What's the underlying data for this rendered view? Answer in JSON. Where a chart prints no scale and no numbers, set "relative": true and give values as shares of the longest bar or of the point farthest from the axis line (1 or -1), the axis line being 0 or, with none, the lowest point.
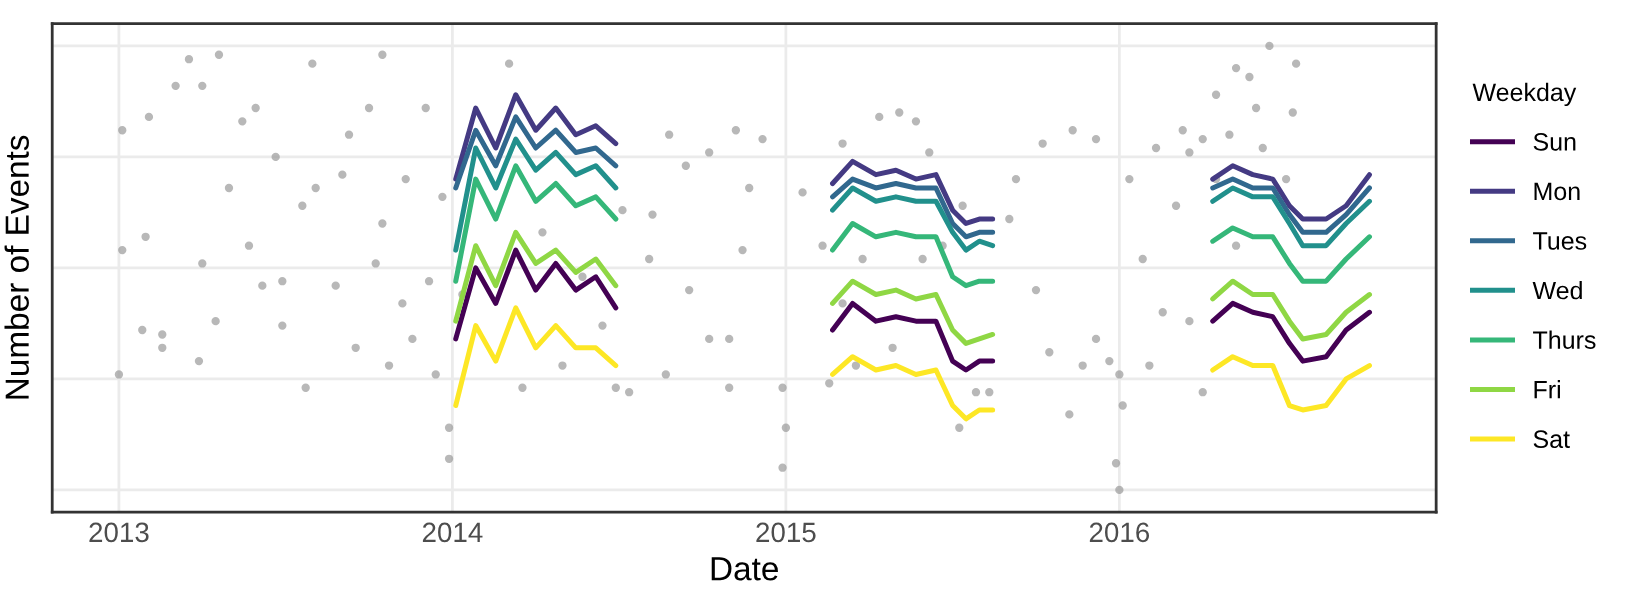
{
  "chart_data": {
    "type": "line",
    "xlabel": "Date",
    "ylabel": "Number of Events",
    "legend_title": "Weekday",
    "legend": "right",
    "grid": true,
    "tick_labels": "x",
    "relative": true,
    "line_style": "solid",
    "marker": "none",
    "xlim": [
      2012.8,
      2016.95
    ],
    "xticks": [
      2013,
      2014,
      2015,
      2016
    ],
    "x": [
      2014.01,
      2014.07,
      2014.13,
      2014.19,
      2014.25,
      2014.31,
      2014.37,
      2014.43,
      2014.49,
      2014.8,
      2015.14,
      2015.2,
      2015.27,
      2015.33,
      2015.39,
      2015.45,
      2015.5,
      2015.54,
      2015.58,
      2015.62,
      2015.9,
      2016.28,
      2016.34,
      2016.4,
      2016.46,
      2016.51,
      2016.55,
      2016.62,
      2016.68,
      2016.75
    ],
    "series": [
      {
        "type": "scatter",
        "color": "#9a9a9a",
        "marker": "circle",
        "x": [
          2013.0,
          2013.01,
          2013.01,
          2013.21,
          2013.3,
          2013.17,
          2013.25,
          2013.09,
          2013.08,
          2013.07,
          2013.13,
          2013.24,
          2013.29,
          2013.37,
          2013.41,
          2013.33,
          2013.47,
          2013.39,
          2013.49,
          2013.58,
          2013.56,
          2013.59,
          2013.65,
          2013.69,
          2013.75,
          2013.79,
          2013.77,
          2013.71,
          2013.81,
          2013.86,
          2013.92,
          2013.93,
          2013.88,
          2013.97,
          2013.99,
          2013.99,
          2013.95,
          2014.17,
          2014.51,
          2014.59,
          2014.6,
          2014.65,
          2014.7,
          2014.77,
          2014.71,
          2014.77,
          2014.83,
          2014.64,
          2014.53,
          2014.49,
          2014.89,
          2014.85,
          2014.93,
          2014.87,
          2014.83,
          2014.99,
          2015.0,
          2014.99,
          2015.05,
          2015.17,
          2015.28,
          2015.34,
          2015.39,
          2015.43,
          2015.13,
          2015.21,
          2015.23,
          2015.41,
          2015.52,
          2015.57,
          2015.61,
          2015.67,
          2015.69,
          2015.77,
          2015.86,
          2015.93,
          2015.75,
          2015.79,
          2015.85,
          2015.89,
          2015.97,
          2016.0,
          2015.99,
          2016.0,
          2016.01,
          2016.03,
          2016.11,
          2016.17,
          2016.19,
          2016.21,
          2016.07,
          2016.09,
          2016.25,
          2016.29,
          2016.35,
          2016.39,
          2016.45,
          2016.53,
          2016.52,
          2016.41,
          2016.33,
          2016.43,
          2016.5,
          2016.25,
          2016.29,
          2016.35,
          2016.21,
          2016.13,
          2015.93,
          2013.13,
          2013.25,
          2013.43,
          2013.55,
          2013.67,
          2013.79,
          2013.49,
          2013.85,
          2014.03,
          2014.27,
          2014.39,
          2014.45,
          2014.33,
          2014.21,
          2015.17,
          2015.32,
          2015.47,
          2015.53,
          2015.11
        ],
        "values": [
          0.26,
          0.81,
          0.54,
          0.97,
          0.98,
          0.91,
          0.91,
          0.84,
          0.57,
          0.36,
          0.32,
          0.29,
          0.38,
          0.83,
          0.86,
          0.68,
          0.75,
          0.55,
          0.47,
          0.96,
          0.23,
          0.68,
          0.46,
          0.8,
          0.86,
          0.98,
          0.51,
          0.32,
          0.28,
          0.7,
          0.86,
          0.47,
          0.34,
          0.66,
          0.14,
          0.07,
          0.26,
          0.96,
          0.63,
          0.52,
          0.62,
          0.8,
          0.73,
          0.76,
          0.45,
          0.34,
          0.23,
          0.26,
          0.22,
          0.23,
          0.68,
          0.81,
          0.79,
          0.54,
          0.34,
          0.23,
          0.14,
          0.05,
          0.67,
          0.78,
          0.84,
          0.85,
          0.83,
          0.76,
          0.24,
          0.28,
          0.52,
          0.52,
          0.14,
          0.22,
          0.22,
          0.61,
          0.7,
          0.78,
          0.81,
          0.79,
          0.45,
          0.31,
          0.17,
          0.28,
          0.29,
          0.26,
          0.06,
          0.0,
          0.19,
          0.7,
          0.77,
          0.64,
          0.81,
          0.76,
          0.52,
          0.28,
          0.22,
          0.89,
          0.95,
          0.93,
          1.0,
          0.96,
          0.85,
          0.86,
          0.8,
          0.77,
          0.7,
          0.79,
          0.7,
          0.55,
          0.38,
          0.4,
          0.34,
          0.35,
          0.51,
          0.46,
          0.64,
          0.71,
          0.6,
          0.37,
          0.42,
          0.44,
          0.58,
          0.48,
          0.37,
          0.28,
          0.23,
          0.42,
          0.32,
          0.55,
          0.64,
          0.55
        ]
      },
      {
        "name": "Sun",
        "color": "#440154",
        "values": [
          0.34,
          0.5,
          0.42,
          0.54,
          0.45,
          0.51,
          0.45,
          0.48,
          0.41,
          null,
          0.36,
          0.42,
          0.38,
          0.39,
          0.38,
          0.38,
          0.29,
          0.27,
          0.29,
          0.29,
          null,
          0.38,
          0.42,
          0.4,
          0.39,
          0.33,
          0.29,
          0.3,
          0.36,
          0.4
        ]
      },
      {
        "name": "Mon",
        "color": "#443a83",
        "values": [
          0.7,
          0.86,
          0.77,
          0.89,
          0.81,
          0.86,
          0.8,
          0.82,
          0.78,
          null,
          0.69,
          0.74,
          0.71,
          0.72,
          0.7,
          0.71,
          0.63,
          0.6,
          0.61,
          0.61,
          null,
          0.7,
          0.73,
          0.71,
          0.7,
          0.64,
          0.61,
          0.61,
          0.64,
          0.71
        ]
      },
      {
        "name": "Tues",
        "color": "#31688e",
        "values": [
          0.68,
          0.81,
          0.73,
          0.84,
          0.77,
          0.81,
          0.76,
          0.77,
          0.73,
          null,
          0.66,
          0.7,
          0.68,
          0.69,
          0.68,
          0.68,
          0.6,
          0.57,
          0.58,
          0.58,
          null,
          0.68,
          0.7,
          0.68,
          0.68,
          0.62,
          0.58,
          0.58,
          0.62,
          0.68
        ]
      },
      {
        "name": "Wed",
        "color": "#21908c",
        "values": [
          0.54,
          0.77,
          0.68,
          0.79,
          0.72,
          0.76,
          0.71,
          0.73,
          0.68,
          null,
          0.63,
          0.68,
          0.65,
          0.66,
          0.65,
          0.65,
          0.58,
          0.54,
          0.56,
          0.55,
          null,
          0.65,
          0.68,
          0.66,
          0.66,
          0.6,
          0.55,
          0.55,
          0.6,
          0.65
        ]
      },
      {
        "name": "Thurs",
        "color": "#35b779",
        "values": [
          0.47,
          0.7,
          0.61,
          0.73,
          0.65,
          0.69,
          0.64,
          0.66,
          0.61,
          null,
          0.54,
          0.6,
          0.57,
          0.58,
          0.57,
          0.57,
          0.48,
          0.46,
          0.47,
          0.47,
          null,
          0.56,
          0.59,
          0.57,
          0.57,
          0.51,
          0.47,
          0.47,
          0.52,
          0.57
        ]
      },
      {
        "name": "Fri",
        "color": "#8fd744",
        "values": [
          0.38,
          0.55,
          0.46,
          0.58,
          0.51,
          0.54,
          0.49,
          0.52,
          0.46,
          null,
          0.42,
          0.47,
          0.44,
          0.45,
          0.43,
          0.44,
          0.36,
          0.33,
          0.34,
          0.35,
          null,
          0.43,
          0.47,
          0.44,
          0.44,
          0.38,
          0.34,
          0.35,
          0.4,
          0.44
        ]
      },
      {
        "name": "Sat",
        "color": "#fde725",
        "values": [
          0.19,
          0.37,
          0.29,
          0.41,
          0.32,
          0.37,
          0.32,
          0.32,
          0.28,
          null,
          0.26,
          0.3,
          0.27,
          0.28,
          0.26,
          0.27,
          0.19,
          0.16,
          0.18,
          0.18,
          null,
          0.27,
          0.3,
          0.28,
          0.28,
          0.19,
          0.18,
          0.19,
          0.25,
          0.28
        ]
      }
    ]
  }
}
